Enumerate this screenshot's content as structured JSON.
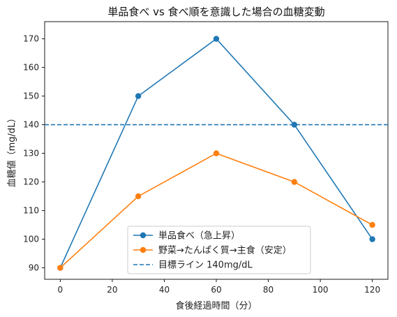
{
  "chart_data": {
    "type": "line",
    "title": "単品食べ vs 食べ順を意識した場合の血糖変動",
    "xlabel": "食後経過時間（分）",
    "ylabel": "血糖値（mg/dL）",
    "x": [
      0,
      30,
      60,
      90,
      120
    ],
    "xlim": [
      -6,
      126
    ],
    "ylim": [
      86,
      176
    ],
    "xticks": [
      0,
      20,
      40,
      60,
      80,
      100,
      120
    ],
    "yticks": [
      90,
      100,
      110,
      120,
      130,
      140,
      150,
      160,
      170
    ],
    "grid": false,
    "legend_position": "lower-center",
    "series": [
      {
        "name": "単品食べ（急上昇）",
        "values": [
          90,
          150,
          170,
          140,
          100
        ],
        "color": "#1f77b4",
        "marker": "circle",
        "style": "solid"
      },
      {
        "name": "野菜→たんぱく質→主食（安定）",
        "values": [
          90,
          115,
          130,
          120,
          105
        ],
        "color": "#ff7f0e",
        "marker": "circle",
        "style": "solid"
      }
    ],
    "reference_lines": [
      {
        "name": "目標ライン 140mg/dL",
        "y": 140,
        "color": "#1f77b4",
        "style": "dashed"
      }
    ]
  }
}
